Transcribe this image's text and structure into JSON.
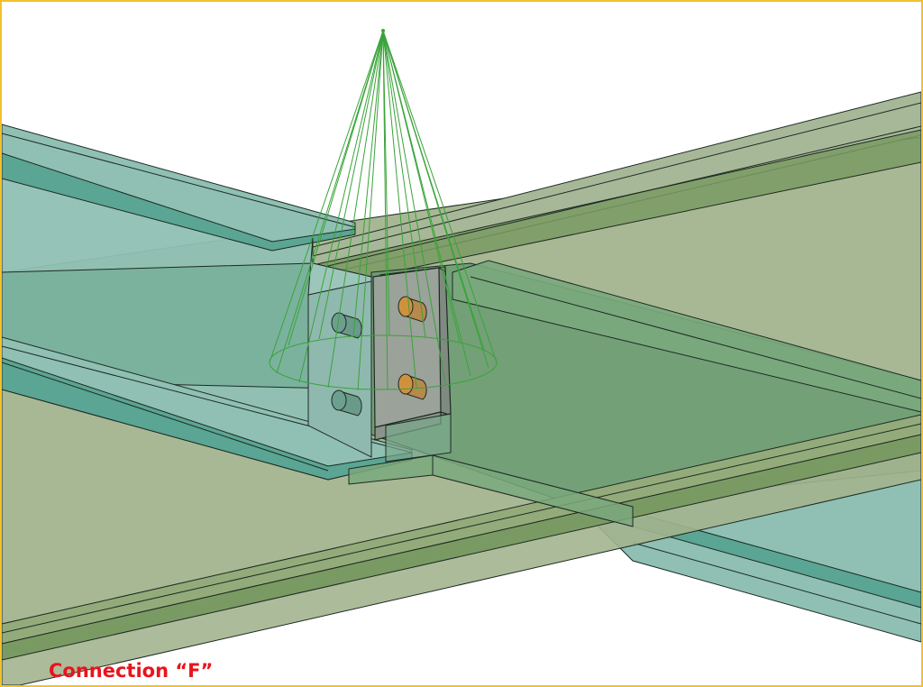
{
  "caption": {
    "text": "Connection “F”",
    "color": "#e8141c"
  },
  "colors": {
    "frame_border": "#f2c12e",
    "beam_teal": "#8fc0b3",
    "beam_teal_dark": "#5aa593",
    "beam_olive": "#a3b48f",
    "beam_olive_dark": "#7a9a63",
    "floor_green": "#6d9d73",
    "plate_gray": "#9aa29a",
    "bolt_orange": "#d0913f",
    "cone_green": "#3aa33a",
    "edge_line": "#1d2a22"
  },
  "objects": {
    "main_beam": "teal-steel-beam",
    "secondary_beam": "olive-steel-beam",
    "connection_plate": "shear-tab-plate",
    "bolts": [
      "bolt-1",
      "bolt-2",
      "bolt-3",
      "bolt-4"
    ],
    "camera_cone": "view-cone"
  }
}
